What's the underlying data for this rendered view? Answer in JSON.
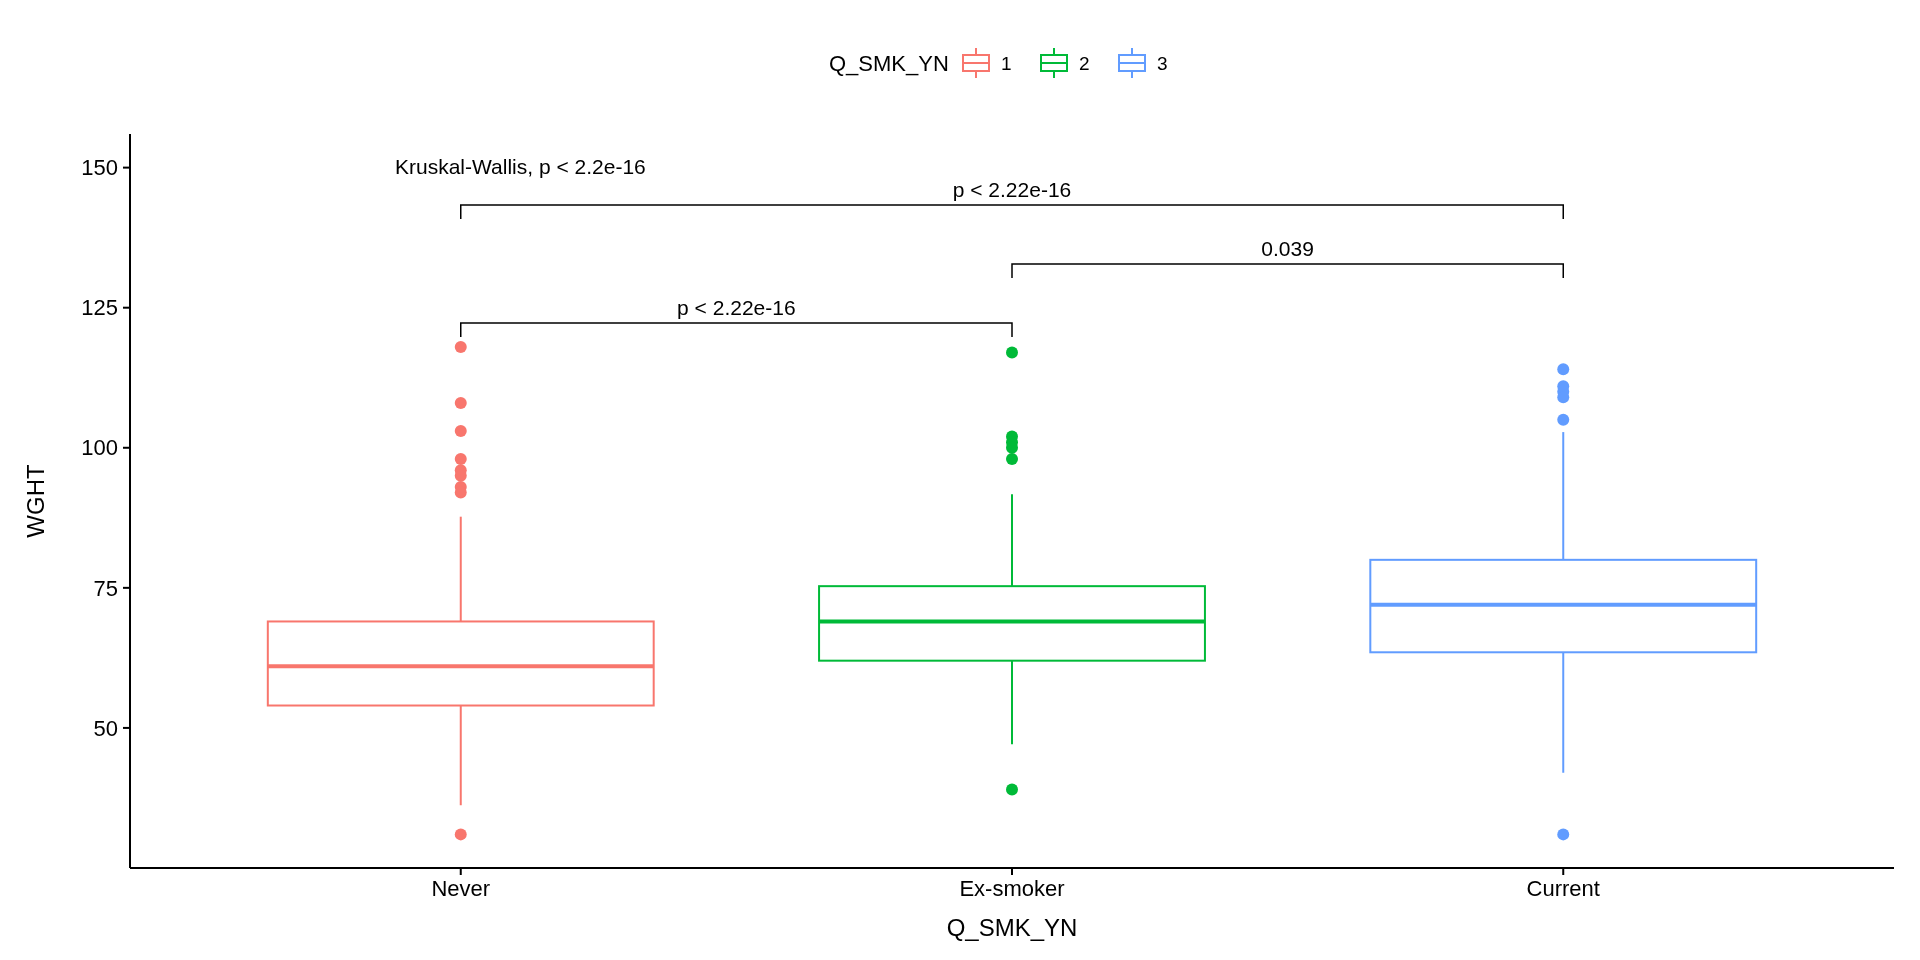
{
  "chart_data": {
    "type": "box",
    "xlabel": "Q_SMK_YN",
    "ylabel": "WGHT",
    "legend_title": "Q_SMK_YN",
    "legend": "top",
    "categories": [
      "Never",
      "Ex-smoker",
      "Current"
    ],
    "ylim": [
      25,
      156
    ],
    "yticks": [
      50,
      75,
      100,
      125,
      150
    ],
    "grid": false,
    "series": [
      {
        "name": "1",
        "color": "#f8766d",
        "boxes": [
          {
            "low": 36.2,
            "q1": 54,
            "median": 61,
            "q3": 69,
            "high": 87.7,
            "outliers": [
              118,
              108,
              103,
              98,
              96,
              95,
              93,
              92,
              31
            ]
          },
          null,
          null
        ]
      },
      {
        "name": "2",
        "color": "#00ba38",
        "boxes": [
          null,
          {
            "low": 47.1,
            "q1": 62,
            "median": 69,
            "q3": 75.3,
            "high": 91.7,
            "outliers": [
              117,
              102,
              101,
              100,
              98,
              39
            ]
          },
          null
        ]
      },
      {
        "name": "3",
        "color": "#619cff",
        "boxes": [
          null,
          null,
          {
            "low": 42,
            "q1": 63.5,
            "median": 72,
            "q3": 80,
            "high": 102.8,
            "outliers": [
              114,
              111,
              110,
              109,
              105,
              31
            ]
          }
        ]
      }
    ],
    "annotations": [
      "Kruskal-Wallis, p < 2.2e-16",
      "p < 2.22e-16",
      "0.039",
      "p < 2.22e-16"
    ]
  }
}
